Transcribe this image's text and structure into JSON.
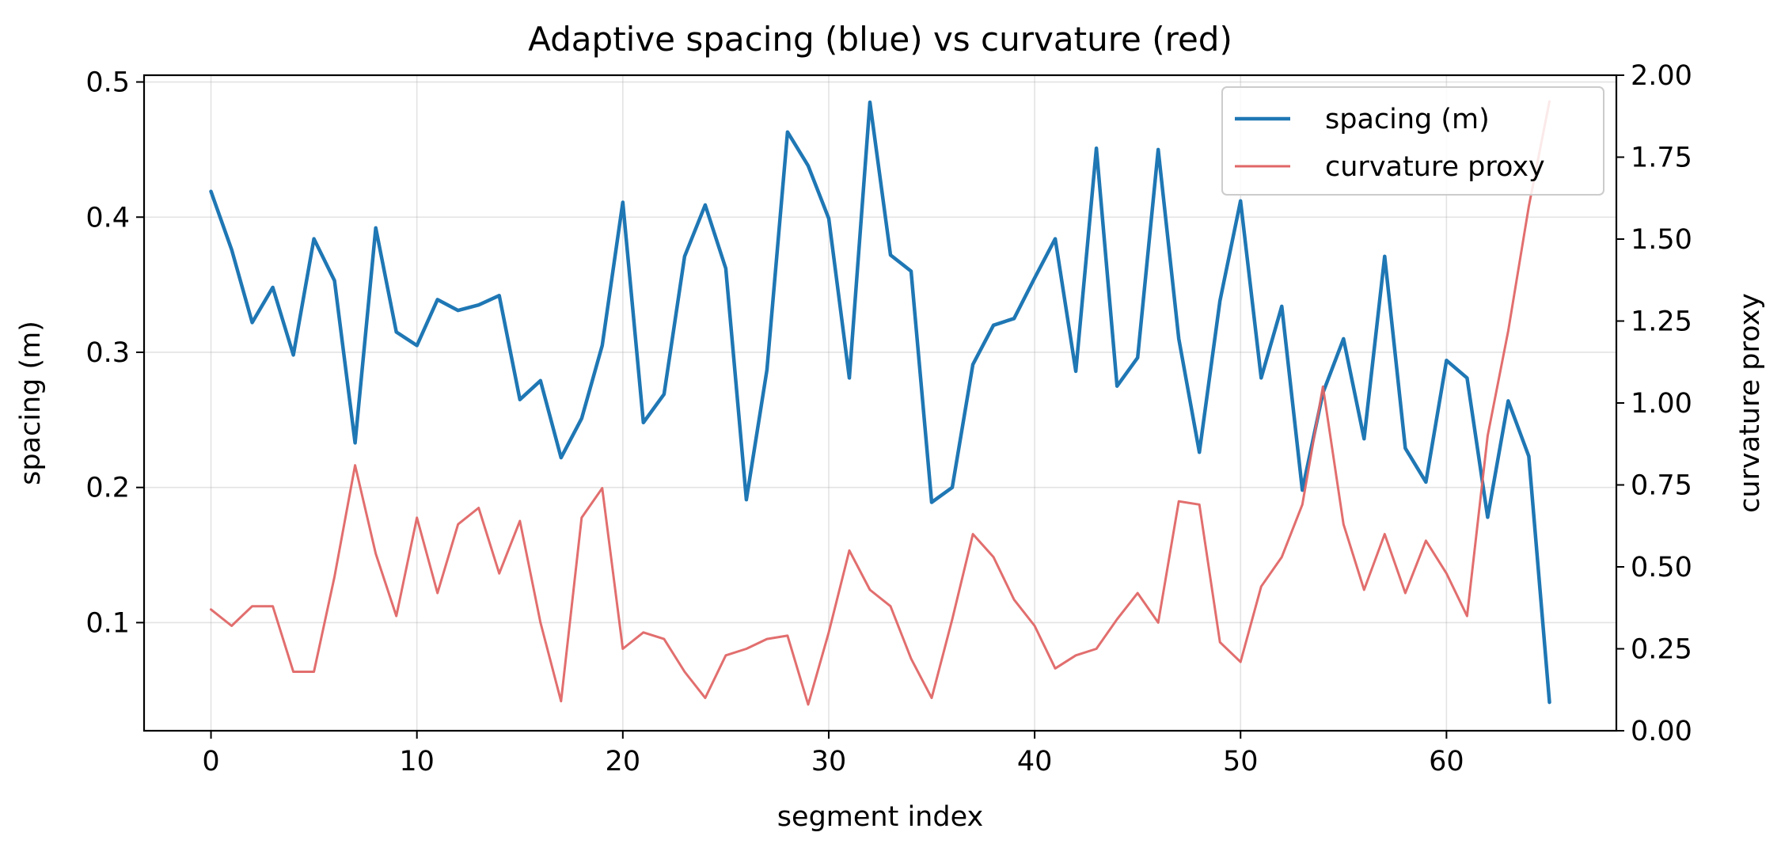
{
  "chart_data": {
    "type": "line",
    "title": "Adaptive spacing (blue) vs curvature (red)",
    "xlabel": "segment index",
    "ylabel": "spacing (m)",
    "ylabel_right": "curvature proxy",
    "xlim": [
      -3.25,
      68.25
    ],
    "ylim": [
      0.02,
      0.505
    ],
    "ylim_right": [
      0.0,
      2.0
    ],
    "x_ticks": [
      "0",
      "10",
      "20",
      "30",
      "40",
      "50",
      "60"
    ],
    "y_ticks": [
      "0.1",
      "0.2",
      "0.3",
      "0.4",
      "0.5"
    ],
    "y_ticks_right": [
      "0.00",
      "0.25",
      "0.50",
      "0.75",
      "1.00",
      "1.25",
      "1.50",
      "1.75",
      "2.00"
    ],
    "grid": true,
    "legend_position": "top-right",
    "series": [
      {
        "name": "spacing (m)",
        "axis": "left",
        "color": "#1f77b4",
        "x": [
          0,
          1,
          2,
          3,
          4,
          5,
          6,
          7,
          8,
          9,
          10,
          11,
          12,
          13,
          14,
          15,
          16,
          17,
          18,
          19,
          20,
          21,
          22,
          23,
          24,
          25,
          26,
          27,
          28,
          29,
          30,
          31,
          32,
          33,
          34,
          35,
          36,
          37,
          38,
          39,
          40,
          41,
          42,
          43,
          44,
          45,
          46,
          47,
          48,
          49,
          50,
          51,
          52,
          53,
          54,
          55,
          56,
          57,
          58,
          59,
          60,
          61,
          62,
          63,
          64,
          65
        ],
        "values": [
          0.419,
          0.376,
          0.322,
          0.348,
          0.298,
          0.384,
          0.353,
          0.233,
          0.392,
          0.315,
          0.305,
          0.339,
          0.331,
          0.335,
          0.342,
          0.265,
          0.279,
          0.222,
          0.251,
          0.305,
          0.411,
          0.248,
          0.269,
          0.371,
          0.409,
          0.362,
          0.191,
          0.287,
          0.463,
          0.438,
          0.399,
          0.281,
          0.485,
          0.372,
          0.36,
          0.189,
          0.2,
          0.291,
          0.32,
          0.325,
          0.355,
          0.384,
          0.286,
          0.451,
          0.275,
          0.296,
          0.45,
          0.31,
          0.226,
          0.338,
          0.412,
          0.281,
          0.334,
          0.198,
          0.27,
          0.31,
          0.236,
          0.371,
          0.229,
          0.204,
          0.294,
          0.281,
          0.178,
          0.264,
          0.223,
          0.041
        ]
      },
      {
        "name": "curvature proxy",
        "axis": "right",
        "color": "#e06666",
        "x": [
          0,
          1,
          2,
          3,
          4,
          5,
          6,
          7,
          8,
          9,
          10,
          11,
          12,
          13,
          14,
          15,
          16,
          17,
          18,
          19,
          20,
          21,
          22,
          23,
          24,
          25,
          26,
          27,
          28,
          29,
          30,
          31,
          32,
          33,
          34,
          35,
          36,
          37,
          38,
          39,
          40,
          41,
          42,
          43,
          44,
          45,
          46,
          47,
          48,
          49,
          50,
          51,
          52,
          53,
          54,
          55,
          56,
          57,
          58,
          59,
          60,
          61,
          62,
          63,
          64,
          65
        ],
        "values": [
          0.37,
          0.32,
          0.38,
          0.38,
          0.18,
          0.18,
          0.47,
          0.81,
          0.54,
          0.35,
          0.65,
          0.42,
          0.63,
          0.68,
          0.48,
          0.64,
          0.33,
          0.09,
          0.65,
          0.74,
          0.25,
          0.3,
          0.28,
          0.18,
          0.1,
          0.23,
          0.25,
          0.28,
          0.29,
          0.08,
          0.3,
          0.55,
          0.43,
          0.38,
          0.22,
          0.1,
          0.34,
          0.6,
          0.53,
          0.4,
          0.32,
          0.19,
          0.23,
          0.25,
          0.34,
          0.42,
          0.33,
          0.7,
          0.69,
          0.27,
          0.21,
          0.44,
          0.53,
          0.69,
          1.05,
          0.63,
          0.43,
          0.6,
          0.42,
          0.58,
          0.48,
          0.35,
          0.9,
          1.22,
          1.6,
          1.92
        ]
      }
    ]
  }
}
